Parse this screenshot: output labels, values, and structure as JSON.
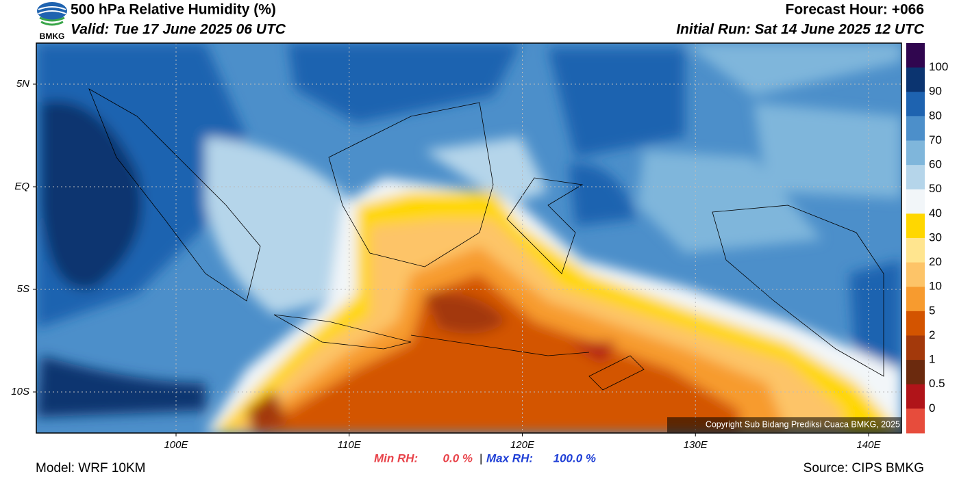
{
  "header": {
    "logo_text": "BMKG",
    "title": "500 hPa Relative Humidity (%)",
    "valid": "Valid: Tue 17 June 2025 06 UTC",
    "forecast_hour": "Forecast Hour: +066",
    "initial_run": "Initial Run: Sat 14 June 2025 12 UTC"
  },
  "map": {
    "lat_labels": [
      "5N",
      "EQ",
      "5S",
      "10S"
    ],
    "lon_labels": [
      "100E",
      "110E",
      "120E",
      "130E",
      "140E"
    ],
    "copyright": "Copyright Sub Bidang Prediksi Cuaca BMKG, 2025"
  },
  "colorbar": {
    "labels": [
      100,
      90,
      80,
      70,
      60,
      50,
      40,
      30,
      20,
      10,
      5,
      2,
      1,
      0.5,
      0
    ],
    "colors": [
      "#30064f",
      "#0b3470",
      "#1e63b0",
      "#4c8fca",
      "#7fb6db",
      "#b5d5ea",
      "#f2f6f9",
      "#ffd700",
      "#ffe58f",
      "#fdc468",
      "#f79b2f",
      "#d35400",
      "#a3390b",
      "#6b2a0e",
      "#b01419",
      "#e74c3c"
    ]
  },
  "stats": {
    "min_label": "Min RH:",
    "min_value": "0.0 %",
    "separator": "|",
    "max_label": "Max RH:",
    "max_value": "100.0 %"
  },
  "footer": {
    "model": "Model: WRF 10KM",
    "source": "Source: CIPS BMKG"
  }
}
